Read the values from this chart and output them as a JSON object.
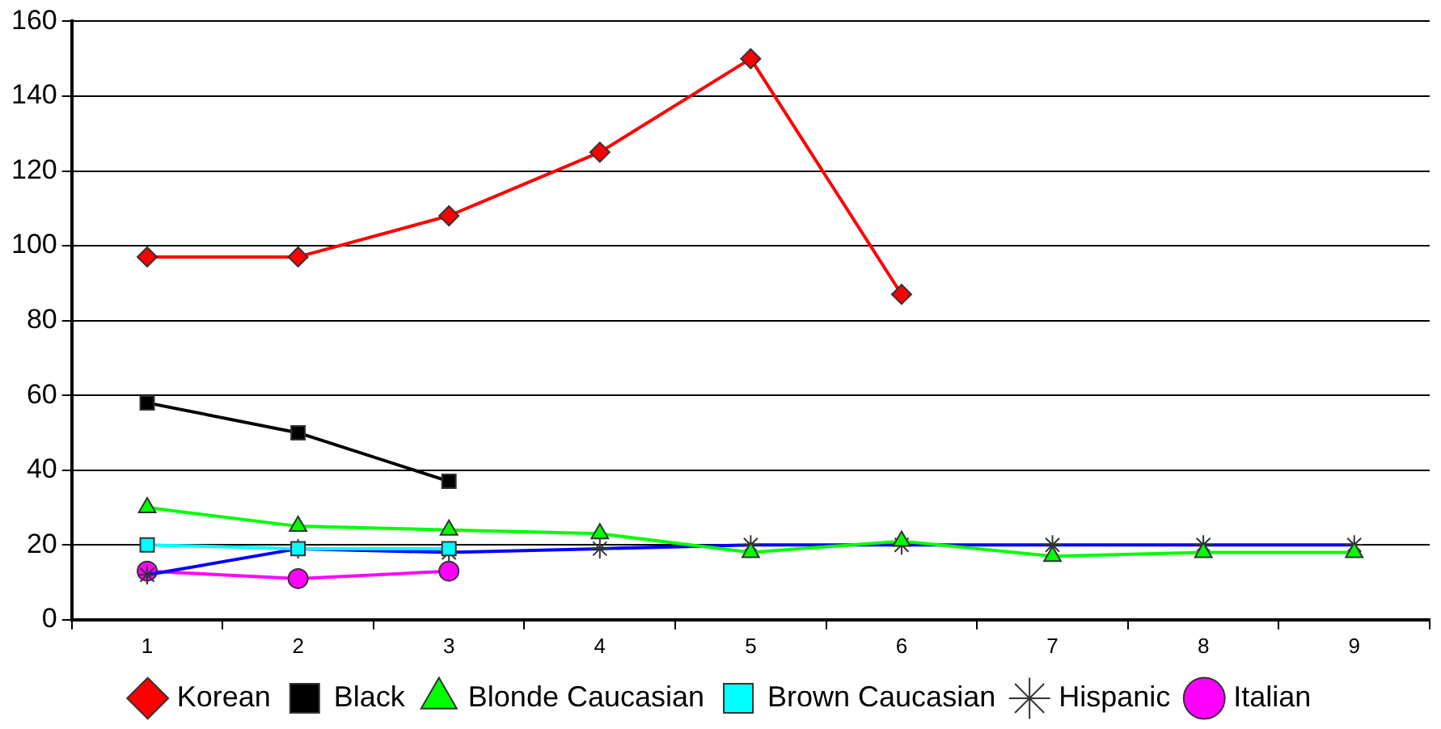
{
  "chart_data": {
    "type": "line",
    "categories": [
      "1",
      "2",
      "3",
      "4",
      "5",
      "6",
      "7",
      "8",
      "9"
    ],
    "ylim": [
      0,
      160
    ],
    "yticks": [
      0,
      20,
      40,
      60,
      80,
      100,
      120,
      140,
      160
    ],
    "grid": "y",
    "legend": "bottom",
    "series": [
      {
        "name": "Korean",
        "color": "#ff0000",
        "marker": "diamond",
        "values": [
          97,
          97,
          108,
          125,
          150,
          87,
          null,
          null,
          null
        ]
      },
      {
        "name": "Black",
        "color": "#000000",
        "marker": "square",
        "values": [
          58,
          50,
          37,
          null,
          null,
          null,
          null,
          null,
          null
        ]
      },
      {
        "name": "Blonde Caucasian",
        "color": "#00ff00",
        "marker": "triangle",
        "values": [
          30,
          25,
          24,
          23,
          18,
          21,
          17,
          18,
          18
        ]
      },
      {
        "name": "Brown Caucasian",
        "color": "#00ffff",
        "marker": "square",
        "values": [
          20,
          19,
          19,
          null,
          null,
          null,
          null,
          null,
          null
        ]
      },
      {
        "name": "Hispanic",
        "color": "#0000ff",
        "marker": "cross",
        "values": [
          12,
          19,
          18,
          19,
          20,
          20,
          20,
          20,
          20
        ]
      },
      {
        "name": "Italian",
        "color": "#ff00ff",
        "marker": "circle",
        "values": [
          13,
          11,
          13,
          null,
          null,
          null,
          null,
          null,
          null
        ]
      }
    ]
  }
}
